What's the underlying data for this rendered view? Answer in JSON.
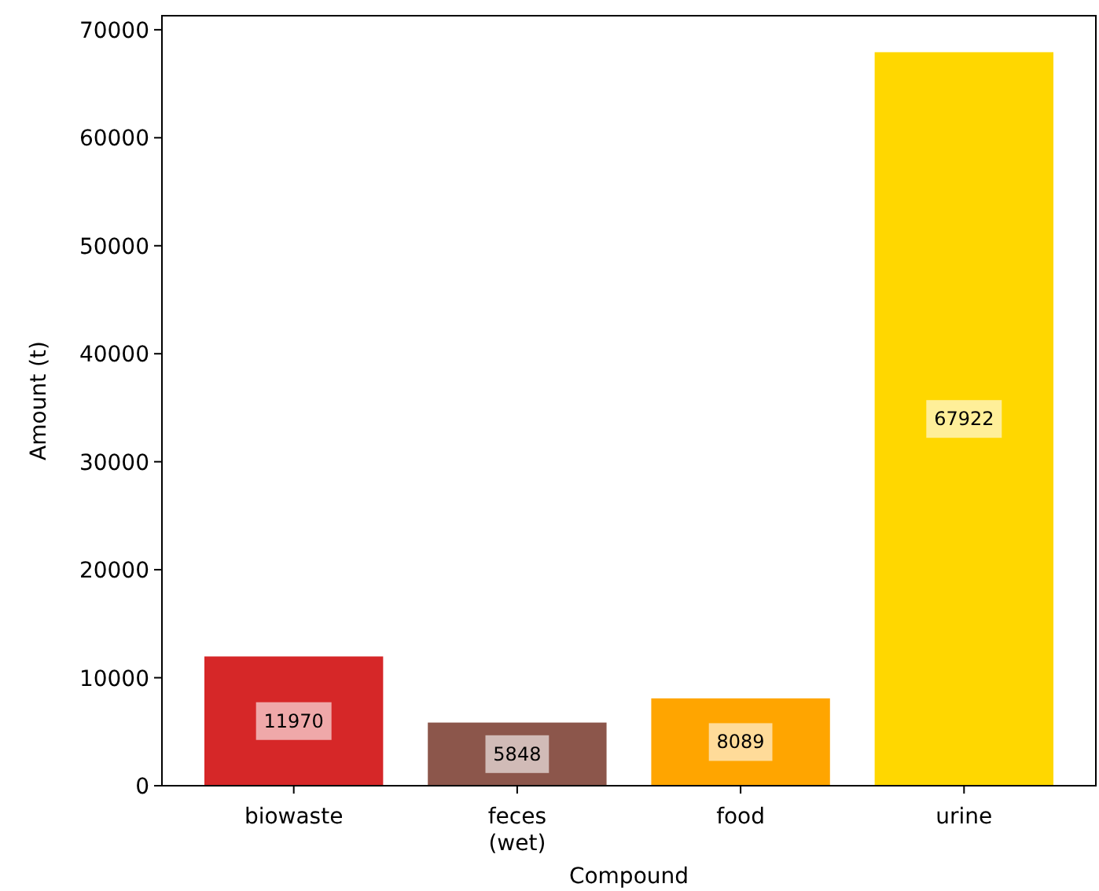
{
  "chart_data": {
    "type": "bar",
    "xlabel": "Compound",
    "ylabel": "Amount (t)",
    "categories": [
      "biowaste",
      "feces\n(wet)",
      "food",
      "urine"
    ],
    "values": [
      11970,
      5848,
      8089,
      67922
    ],
    "colors": [
      "#d62728",
      "#8c564b",
      "#ffa500",
      "#ffd700"
    ],
    "ylim": [
      0,
      71300
    ],
    "yticks": [
      0,
      10000,
      20000,
      30000,
      40000,
      50000,
      60000,
      70000
    ],
    "data_labels": true,
    "grid": false
  }
}
